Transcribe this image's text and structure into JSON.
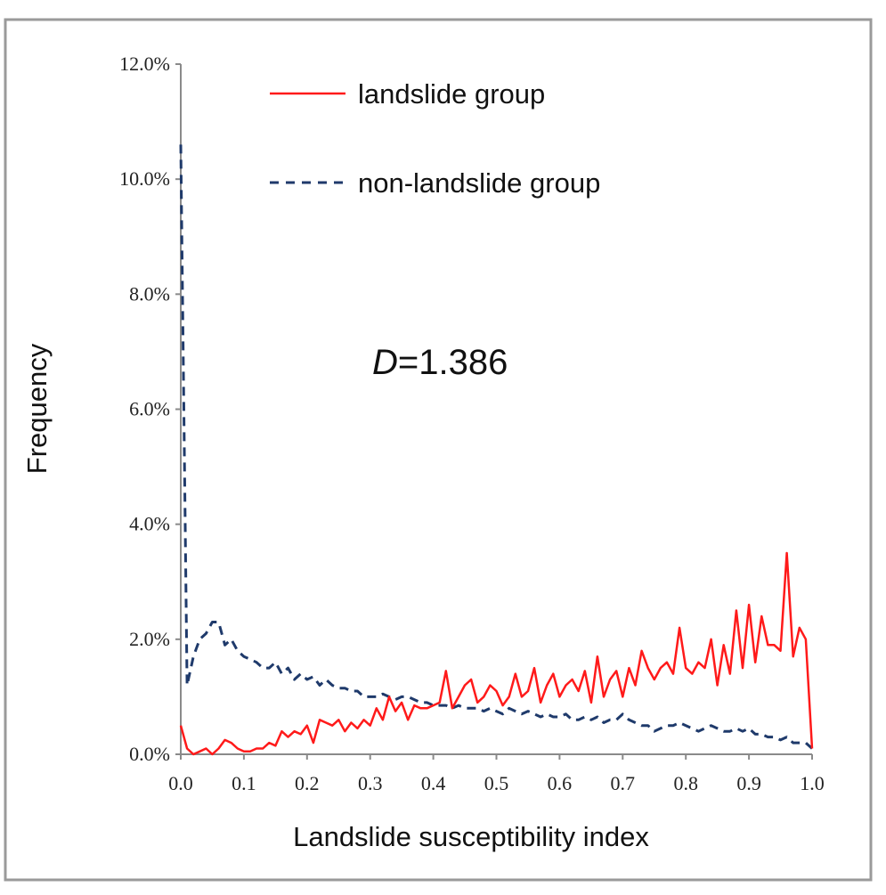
{
  "chart_data": {
    "type": "line",
    "xlabel": "Landslide susceptibility index",
    "ylabel": "Frequency",
    "xlim": [
      0.0,
      1.0
    ],
    "ylim": [
      0.0,
      12.0
    ],
    "x_ticks": [
      "0.0",
      "0.1",
      "0.2",
      "0.3",
      "0.4",
      "0.5",
      "0.6",
      "0.7",
      "0.8",
      "0.9",
      "1.0"
    ],
    "y_ticks": [
      "0.0%",
      "2.0%",
      "4.0%",
      "6.0%",
      "8.0%",
      "10.0%",
      "12.0%"
    ],
    "legend_position": "top-right",
    "annotation": {
      "italic": "D",
      "rest": "=1.386"
    },
    "series": [
      {
        "name": "landslide group",
        "color": "#ff1a1a",
        "style": "solid",
        "x": [
          0.0,
          0.01,
          0.02,
          0.03,
          0.04,
          0.05,
          0.06,
          0.07,
          0.08,
          0.09,
          0.1,
          0.11,
          0.12,
          0.13,
          0.14,
          0.15,
          0.16,
          0.17,
          0.18,
          0.19,
          0.2,
          0.21,
          0.22,
          0.23,
          0.24,
          0.25,
          0.26,
          0.27,
          0.28,
          0.29,
          0.3,
          0.31,
          0.32,
          0.33,
          0.34,
          0.35,
          0.36,
          0.37,
          0.38,
          0.39,
          0.4,
          0.41,
          0.42,
          0.43,
          0.44,
          0.45,
          0.46,
          0.47,
          0.48,
          0.49,
          0.5,
          0.51,
          0.52,
          0.53,
          0.54,
          0.55,
          0.56,
          0.57,
          0.58,
          0.59,
          0.6,
          0.61,
          0.62,
          0.63,
          0.64,
          0.65,
          0.66,
          0.67,
          0.68,
          0.69,
          0.7,
          0.71,
          0.72,
          0.73,
          0.74,
          0.75,
          0.76,
          0.77,
          0.78,
          0.79,
          0.8,
          0.81,
          0.82,
          0.83,
          0.84,
          0.85,
          0.86,
          0.87,
          0.88,
          0.89,
          0.9,
          0.91,
          0.92,
          0.93,
          0.94,
          0.95,
          0.96,
          0.97,
          0.98,
          0.99,
          1.0
        ],
        "y": [
          0.5,
          0.1,
          0.0,
          0.05,
          0.1,
          0.0,
          0.1,
          0.25,
          0.2,
          0.1,
          0.05,
          0.05,
          0.1,
          0.1,
          0.2,
          0.15,
          0.4,
          0.3,
          0.4,
          0.35,
          0.5,
          0.2,
          0.6,
          0.55,
          0.5,
          0.6,
          0.4,
          0.55,
          0.45,
          0.6,
          0.5,
          0.8,
          0.6,
          1.0,
          0.75,
          0.9,
          0.6,
          0.85,
          0.8,
          0.8,
          0.85,
          0.9,
          1.45,
          0.8,
          1.0,
          1.2,
          1.3,
          0.9,
          1.0,
          1.2,
          1.1,
          0.85,
          1.0,
          1.4,
          1.0,
          1.1,
          1.5,
          0.9,
          1.2,
          1.4,
          1.0,
          1.2,
          1.3,
          1.1,
          1.45,
          0.9,
          1.7,
          1.0,
          1.3,
          1.45,
          1.0,
          1.5,
          1.2,
          1.8,
          1.5,
          1.3,
          1.5,
          1.6,
          1.4,
          2.2,
          1.5,
          1.4,
          1.6,
          1.5,
          2.0,
          1.2,
          1.9,
          1.4,
          2.5,
          1.5,
          2.6,
          1.6,
          2.4,
          1.9,
          1.9,
          1.8,
          3.5,
          1.7,
          2.2,
          2.0,
          0.1
        ]
      },
      {
        "name": "non-landslide group",
        "color": "#1f3a6b",
        "style": "dashed",
        "x": [
          0.0,
          0.01,
          0.02,
          0.03,
          0.04,
          0.05,
          0.06,
          0.07,
          0.08,
          0.09,
          0.1,
          0.11,
          0.12,
          0.13,
          0.14,
          0.15,
          0.16,
          0.17,
          0.18,
          0.19,
          0.2,
          0.21,
          0.22,
          0.23,
          0.24,
          0.25,
          0.26,
          0.27,
          0.28,
          0.29,
          0.3,
          0.31,
          0.32,
          0.33,
          0.34,
          0.35,
          0.36,
          0.37,
          0.38,
          0.39,
          0.4,
          0.41,
          0.42,
          0.43,
          0.44,
          0.45,
          0.46,
          0.47,
          0.48,
          0.49,
          0.5,
          0.51,
          0.52,
          0.53,
          0.54,
          0.55,
          0.56,
          0.57,
          0.58,
          0.59,
          0.6,
          0.61,
          0.62,
          0.63,
          0.64,
          0.65,
          0.66,
          0.67,
          0.68,
          0.69,
          0.7,
          0.71,
          0.72,
          0.73,
          0.74,
          0.75,
          0.76,
          0.77,
          0.78,
          0.79,
          0.8,
          0.81,
          0.82,
          0.83,
          0.84,
          0.85,
          0.86,
          0.87,
          0.88,
          0.89,
          0.9,
          0.91,
          0.92,
          0.93,
          0.94,
          0.95,
          0.96,
          0.97,
          0.98,
          0.99,
          1.0
        ],
        "y": [
          10.6,
          1.2,
          1.7,
          2.0,
          2.1,
          2.3,
          2.3,
          1.9,
          2.0,
          1.8,
          1.7,
          1.65,
          1.6,
          1.5,
          1.5,
          1.6,
          1.4,
          1.5,
          1.3,
          1.4,
          1.3,
          1.35,
          1.2,
          1.3,
          1.2,
          1.15,
          1.15,
          1.1,
          1.1,
          1.0,
          1.0,
          1.0,
          1.05,
          1.0,
          0.95,
          1.0,
          1.0,
          0.95,
          0.9,
          0.9,
          0.85,
          0.85,
          0.85,
          0.8,
          0.85,
          0.8,
          0.8,
          0.8,
          0.75,
          0.8,
          0.75,
          0.7,
          0.8,
          0.75,
          0.7,
          0.75,
          0.7,
          0.65,
          0.7,
          0.65,
          0.65,
          0.7,
          0.6,
          0.6,
          0.65,
          0.6,
          0.65,
          0.55,
          0.6,
          0.6,
          0.7,
          0.6,
          0.55,
          0.5,
          0.5,
          0.4,
          0.45,
          0.5,
          0.5,
          0.55,
          0.5,
          0.45,
          0.4,
          0.45,
          0.5,
          0.45,
          0.4,
          0.4,
          0.45,
          0.4,
          0.45,
          0.35,
          0.35,
          0.3,
          0.3,
          0.25,
          0.3,
          0.2,
          0.2,
          0.2,
          0.1
        ]
      }
    ]
  }
}
